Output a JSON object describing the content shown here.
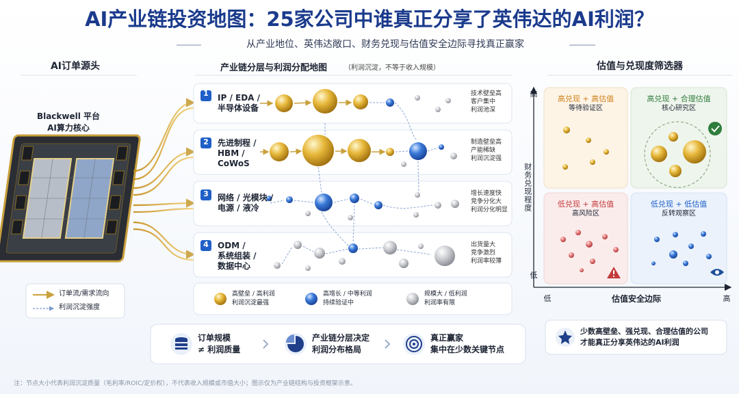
{
  "header": {
    "title": "AI产业链投资地图：25家公司中谁真正分享了英伟达的AI利润？",
    "subtitle": "从产业地位、英伟达敞口、财务兑现与估值安全边际寻找真正赢家"
  },
  "order_source": {
    "heading": "AI订单源头",
    "chip_name": "Blackwell 平台",
    "chip_desc": "AI算力核心",
    "legend": [
      "订单流/需求流向",
      "利润沉淀强度"
    ]
  },
  "profit_map": {
    "heading": "产业链分层与利润分配地图",
    "note": "（利润沉淀，不等于收入规模）",
    "layers": [
      {
        "number": "1",
        "name": [
          "IP / EDA /",
          "半导体设备"
        ],
        "traits": [
          "技术壁垒高",
          "客户集中",
          "利润池深"
        ]
      },
      {
        "number": "2",
        "name": [
          "先进制程 /",
          "HBM /",
          "CoWoS"
        ],
        "traits": [
          "制造壁垒高",
          "产能稀缺",
          "利润沉淀强"
        ]
      },
      {
        "number": "3",
        "name": [
          "网络 / 光模块 /",
          "电源 / 液冷"
        ],
        "traits": [
          "增长速度快",
          "竞争分化大",
          "利润分化明显"
        ]
      },
      {
        "number": "4",
        "name": [
          "ODM /",
          "系统组装 /",
          "数据中心"
        ],
        "traits": [
          "出货量大",
          "竞争激烈",
          "利润率较薄"
        ]
      }
    ],
    "legend": [
      {
        "label": "高壁垒 / 高利润",
        "desc": "利润沉淀最强"
      },
      {
        "label": "高增长 / 中等利润",
        "desc": "持续验证中"
      },
      {
        "label": "规模大 / 低利润",
        "desc": "利润率有限"
      }
    ]
  },
  "screener": {
    "heading": "估值与兑现度筛选器",
    "y_axis": {
      "label": "财务兑现程度",
      "high": "高",
      "low": "低"
    },
    "x_axis": {
      "label": "估值安全边际",
      "high": "高",
      "low": "低"
    },
    "quadrants": [
      {
        "label": "高兑现 + 高估值",
        "zone": "等待验证区"
      },
      {
        "label": "高兑现 + 合理估值",
        "zone": "核心研究区"
      },
      {
        "label": "低兑现 + 高估值",
        "zone": "高风险区"
      },
      {
        "label": "低兑现 + 低估值",
        "zone": "反转观察区"
      }
    ],
    "conclusion": [
      "少数高壁垒、强兑现、合理估值的公司",
      "才能真正分享英伟达的AI利润"
    ]
  },
  "takeaways": [
    [
      "订单规模",
      "≠ 利润质量"
    ],
    [
      "产业链分层决定",
      "利润分布格局"
    ],
    [
      "真正赢家",
      "集中在少数关键节点"
    ]
  ],
  "footnote": "注：节点大小代表利润沉淀质量（毛利率/ROIC/定价权），不代表收入规模或市值大小；图示仅为产业链结构与投资框架示意。"
}
